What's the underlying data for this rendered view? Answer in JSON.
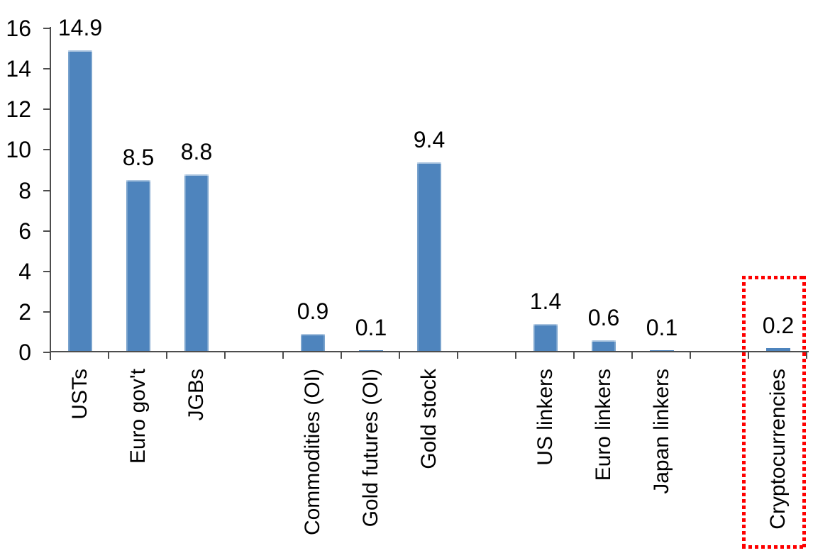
{
  "chart_data": {
    "type": "bar",
    "title": "",
    "xlabel": "",
    "ylabel": "",
    "ylim": [
      0,
      16
    ],
    "yticks": [
      0,
      2,
      4,
      6,
      8,
      10,
      12,
      14,
      16
    ],
    "grid": false,
    "legend": false,
    "bar_color": "#4e84bd",
    "axis_color": "#4d4d4d",
    "text_color": "#000000",
    "highlight_box_color": "#fe0000",
    "total_slots": 13,
    "categories": [
      "USTs",
      "Euro gov't",
      "JGBs",
      "Commodities (OI)",
      "Gold futures (OI)",
      "Gold stock",
      "US linkers",
      "Euro linkers",
      "Japan linkers",
      "Cryptocurrencies"
    ],
    "values": [
      14.9,
      8.5,
      8.8,
      0.9,
      0.1,
      9.4,
      1.4,
      0.6,
      0.1,
      0.2
    ],
    "items": [
      {
        "label": "USTs",
        "value": 14.9,
        "value_label": "14.9",
        "slot": 0,
        "highlighted": false
      },
      {
        "label": "Euro gov't",
        "value": 8.5,
        "value_label": "8.5",
        "slot": 1,
        "highlighted": false
      },
      {
        "label": "JGBs",
        "value": 8.8,
        "value_label": "8.8",
        "slot": 2,
        "highlighted": false
      },
      {
        "label": "Commodities (OI)",
        "value": 0.9,
        "value_label": "0.9",
        "slot": 4,
        "highlighted": false
      },
      {
        "label": "Gold futures (OI)",
        "value": 0.1,
        "value_label": "0.1",
        "slot": 5,
        "highlighted": false
      },
      {
        "label": "Gold stock",
        "value": 9.4,
        "value_label": "9.4",
        "slot": 6,
        "highlighted": false
      },
      {
        "label": "US linkers",
        "value": 1.4,
        "value_label": "1.4",
        "slot": 8,
        "highlighted": false
      },
      {
        "label": "Euro linkers",
        "value": 0.6,
        "value_label": "0.6",
        "slot": 9,
        "highlighted": false
      },
      {
        "label": "Japan linkers",
        "value": 0.1,
        "value_label": "0.1",
        "slot": 10,
        "highlighted": false
      },
      {
        "label": "Cryptocurrencies",
        "value": 0.2,
        "value_label": "0.2",
        "slot": 12,
        "highlighted": true
      }
    ]
  }
}
